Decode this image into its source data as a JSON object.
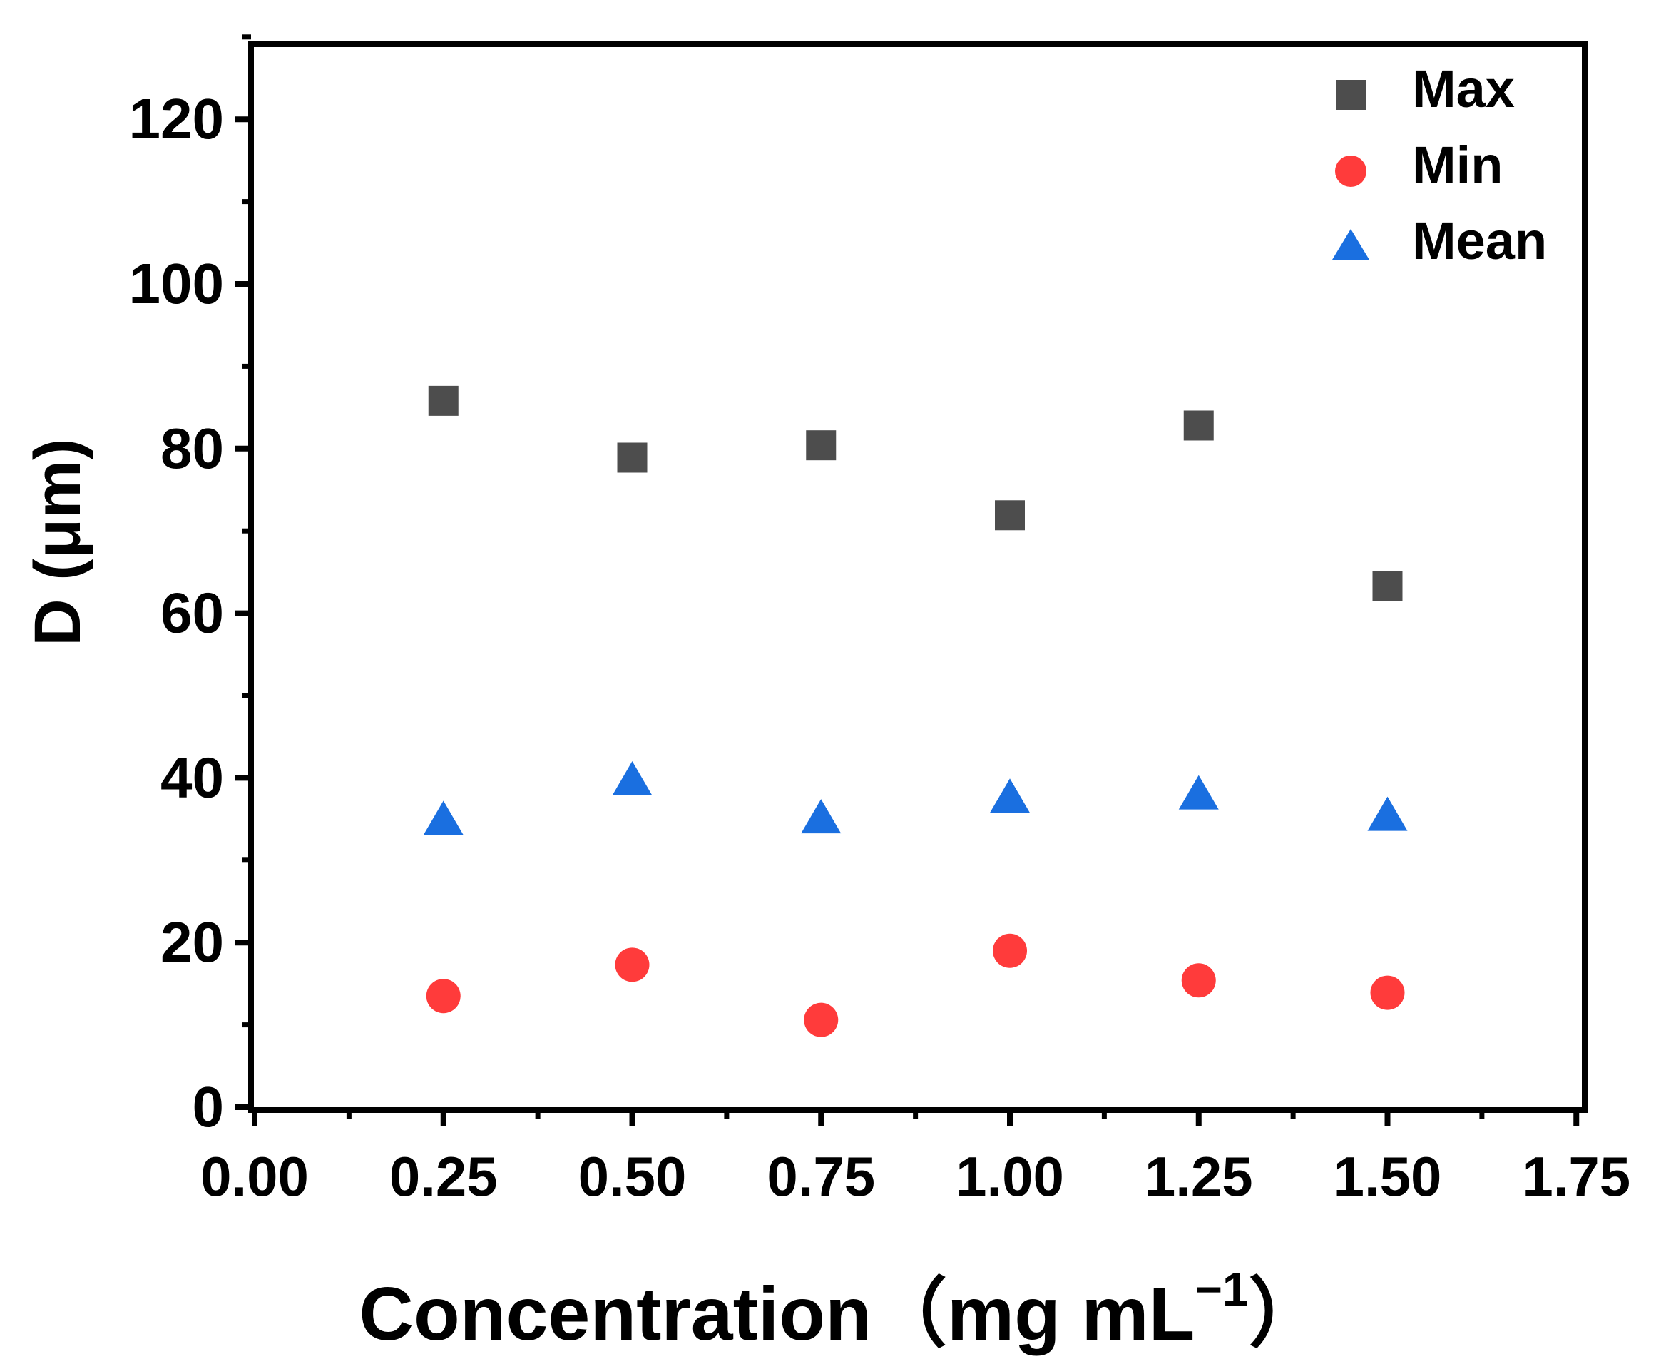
{
  "chart_data": {
    "type": "scatter",
    "xlabel": "Concentration（mg mL",
    "xlabel_superscript": "−1",
    "xlabel_tail": "）",
    "ylabel": "D (μm)",
    "xlim": [
      0,
      1.75
    ],
    "ylim": [
      0,
      130
    ],
    "x_ticks": [
      "0.00",
      "0.25",
      "0.50",
      "0.75",
      "1.00",
      "1.25",
      "1.50",
      "1.75"
    ],
    "x_tick_values": [
      0,
      0.25,
      0.5,
      0.75,
      1.0,
      1.25,
      1.5,
      1.75
    ],
    "y_ticks": [
      "0",
      "20",
      "40",
      "60",
      "80",
      "100",
      "120"
    ],
    "y_tick_values": [
      0,
      20,
      40,
      60,
      80,
      100,
      120
    ],
    "legend_position": "top-right",
    "x": [
      0.25,
      0.5,
      0.75,
      1.0,
      1.25,
      1.5
    ],
    "series": [
      {
        "name": "Max",
        "marker": "square",
        "color": "#4d4d4d",
        "values": [
          85.8,
          78.9,
          80.4,
          71.9,
          82.8,
          63.3
        ]
      },
      {
        "name": "Min",
        "marker": "circle",
        "color": "#ff3b3b",
        "values": [
          13.5,
          17.3,
          10.6,
          19.0,
          15.4,
          13.9
        ]
      },
      {
        "name": "Mean",
        "marker": "triangle",
        "color": "#1a6fe0",
        "values": [
          34.8,
          39.6,
          35.0,
          37.5,
          37.9,
          35.3
        ]
      }
    ]
  }
}
